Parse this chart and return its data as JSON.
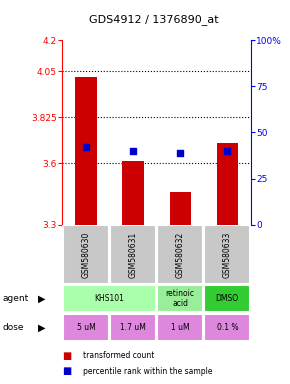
{
  "title": "GDS4912 / 1376890_at",
  "samples": [
    "GSM580630",
    "GSM580631",
    "GSM580632",
    "GSM580633"
  ],
  "bar_values": [
    4.02,
    3.61,
    3.46,
    3.7
  ],
  "bar_bottom": 3.3,
  "percentile_values": [
    42,
    40,
    39,
    40
  ],
  "ylim_left": [
    3.3,
    4.2
  ],
  "ylim_right": [
    0,
    100
  ],
  "yticks_left": [
    3.3,
    3.6,
    3.825,
    4.05,
    4.2
  ],
  "yticks_right": [
    0,
    25,
    50,
    75,
    100
  ],
  "ytick_labels_left": [
    "3.3",
    "3.6",
    "3.825",
    "4.05",
    "4.2"
  ],
  "ytick_labels_right": [
    "0",
    "25",
    "50",
    "75",
    "100%"
  ],
  "hlines": [
    4.05,
    3.825,
    3.6
  ],
  "bar_color": "#cc0000",
  "dot_color": "#0000cc",
  "dose_labels": [
    "5 uM",
    "1.7 uM",
    "1 uM",
    "0.1 %"
  ],
  "dose_color": "#dd88dd",
  "sample_bg_color": "#c8c8c8",
  "legend_bar_color": "#cc0000",
  "legend_dot_color": "#0000cc",
  "agent_data": [
    {
      "c0": 0,
      "c1": 1,
      "label": "KHS101",
      "color": "#aaffaa"
    },
    {
      "c0": 2,
      "c1": 2,
      "label": "retinoic\nacid",
      "color": "#99ee99"
    },
    {
      "c0": 3,
      "c1": 3,
      "label": "DMSO",
      "color": "#33cc33"
    }
  ]
}
